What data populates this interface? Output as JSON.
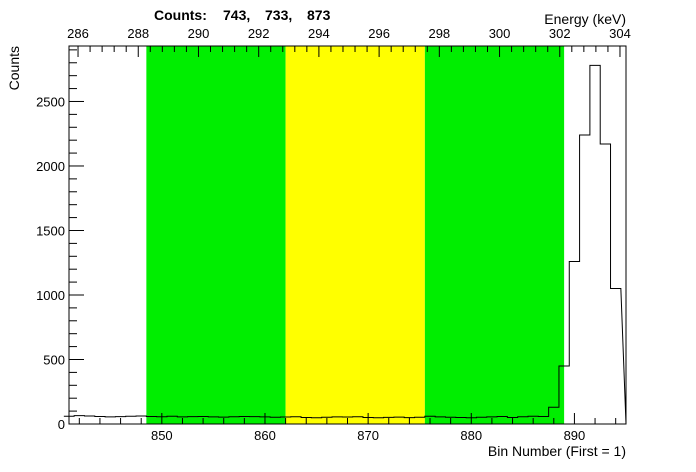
{
  "chart_data": {
    "type": "histogram",
    "title": "",
    "counts_label": "Counts:",
    "counts_values": [
      "743,",
      "733,",
      "873"
    ],
    "ylabel": "Counts",
    "xlabel_bottom": "Bin Number (First = 1)",
    "xlabel_top": "Energy (keV)",
    "xlim": [
      841,
      895
    ],
    "ylim": [
      0,
      2930
    ],
    "energy_range": [
      285.7,
      304.2
    ],
    "x_ticks": [
      850,
      860,
      870,
      880,
      890
    ],
    "y_ticks": [
      0,
      500,
      1000,
      1500,
      2000,
      2500
    ],
    "top_ticks": [
      286,
      288,
      290,
      292,
      294,
      296,
      298,
      300,
      302,
      304
    ],
    "regions": [
      {
        "from": 848.5,
        "to": 862.0,
        "color": "#00ee00"
      },
      {
        "from": 862.0,
        "to": 875.5,
        "color": "#ffff00"
      },
      {
        "from": 875.5,
        "to": 889.0,
        "color": "#00ee00"
      }
    ],
    "histogram": {
      "first_bin_edge": 840.5,
      "bin_width": 1,
      "values": [
        60,
        65,
        62,
        58,
        55,
        57,
        60,
        62,
        58,
        56,
        60,
        55,
        57,
        58,
        55,
        53,
        56,
        58,
        57,
        55,
        52,
        54,
        56,
        50,
        48,
        52,
        55,
        54,
        56,
        50,
        48,
        51,
        53,
        49,
        52,
        60,
        55,
        52,
        50,
        48,
        52,
        55,
        58,
        50,
        56,
        60,
        58,
        130,
        450,
        1260,
        2240,
        2780,
        2170,
        1050
      ],
      "line_color": "#000000"
    }
  }
}
